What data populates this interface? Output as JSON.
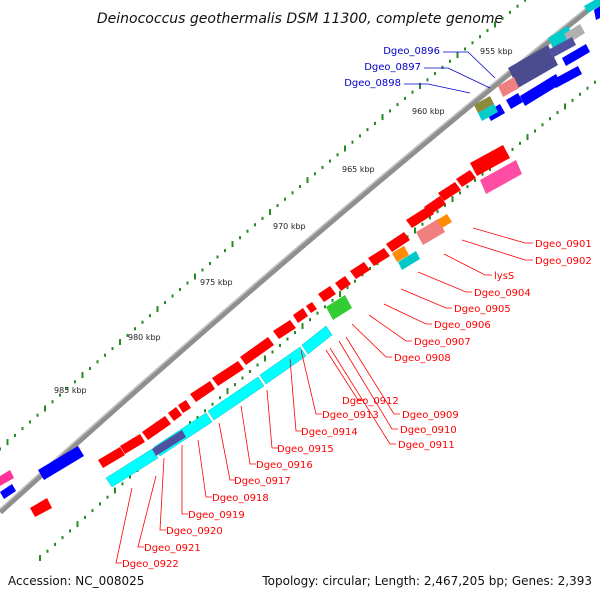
{
  "title": "Deinococcus geothermalis DSM 11300, complete genome",
  "accession": "Accession: NC_008025",
  "summary": "Topology: circular; Length: 2,467,205 bp; Genes: 2,393",
  "colors": {
    "cds": "#ff0000",
    "cds_blue": "#0000ff",
    "backbone": "#9a9a9a",
    "tick": "#228b22",
    "label_red": "#ff0000",
    "label_blue": "#0000cc"
  },
  "kbp_labels": [
    "955 kbp",
    "960 kbp",
    "965 kbp",
    "970 kbp",
    "975 kbp",
    "980 kbp",
    "985 kbp"
  ],
  "gene_labels_red": [
    "Dgeo_0901",
    "Dgeo_0902",
    "lysS",
    "Dgeo_0904",
    "Dgeo_0905",
    "Dgeo_0906",
    "Dgeo_0907",
    "Dgeo_0908",
    "Dgeo_0909",
    "Dgeo_0910",
    "Dgeo_0911",
    "Dgeo_0912",
    "Dgeo_0913",
    "Dgeo_0914",
    "Dgeo_0915",
    "Dgeo_0916",
    "Dgeo_0917",
    "Dgeo_0918",
    "Dgeo_0919",
    "Dgeo_0920",
    "Dgeo_0921",
    "Dgeo_0922"
  ],
  "gene_labels_blue": [
    "Dgeo_0896",
    "Dgeo_0897",
    "Dgeo_0898"
  ]
}
